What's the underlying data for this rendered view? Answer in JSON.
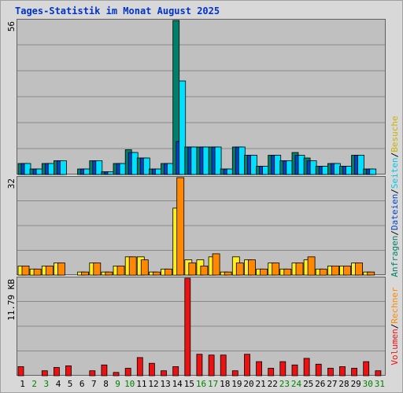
{
  "title": "Tages-Statistik im Monat August 2025",
  "colors": {
    "anfragen": "#00806b",
    "dateien": "#0044cc",
    "seiten": "#00e0ff",
    "besuche": "#ffee22",
    "rechner": "#ff8800",
    "volumen": "#ee1111",
    "weekday_label": "#000000",
    "weekend_label": "#008000"
  },
  "legend_top": {
    "anfragen": "Anfragen",
    "sep1": "/",
    "dateien": "Dateien",
    "sep2": "/",
    "seiten": "Seiten",
    "sep3": "/",
    "besuche": "Besuche"
  },
  "legend_bottom": {
    "rechner": "Rechner",
    "sep": "/",
    "volumen": "Volumen"
  },
  "chart_data": [
    {
      "type": "bar",
      "panel": "top",
      "ymax_label": "56",
      "ylim": [
        0,
        56
      ],
      "categories": [
        "1",
        "2",
        "3",
        "4",
        "5",
        "6",
        "7",
        "8",
        "9",
        "10",
        "11",
        "12",
        "13",
        "14",
        "15",
        "16",
        "17",
        "18",
        "19",
        "20",
        "21",
        "22",
        "23",
        "24",
        "25",
        "26",
        "27",
        "28",
        "29",
        "30",
        "31"
      ],
      "weekend_days": [
        2,
        3,
        9,
        10,
        16,
        17,
        23,
        24,
        30,
        31
      ],
      "series": [
        {
          "name": "Anfragen",
          "values": [
            4,
            2,
            4,
            5,
            0,
            2,
            5,
            1,
            4,
            9,
            6,
            2,
            4,
            56,
            10,
            10,
            10,
            2,
            10,
            7,
            3,
            7,
            5,
            8,
            6,
            3,
            4,
            3,
            7,
            2,
            0
          ]
        },
        {
          "name": "Dateien",
          "values": [
            4,
            2,
            4,
            5,
            0,
            2,
            5,
            1,
            4,
            8,
            6,
            2,
            4,
            12,
            10,
            10,
            10,
            2,
            10,
            7,
            3,
            7,
            5,
            7,
            5,
            3,
            4,
            3,
            7,
            2,
            0
          ]
        },
        {
          "name": "Seiten",
          "values": [
            4,
            2,
            4,
            5,
            0,
            2,
            5,
            1,
            4,
            8,
            6,
            2,
            4,
            34,
            10,
            10,
            10,
            2,
            10,
            7,
            3,
            7,
            5,
            7,
            5,
            3,
            4,
            3,
            7,
            2,
            0
          ]
        }
      ]
    },
    {
      "type": "bar",
      "panel": "middle",
      "ymax_label": "32",
      "ylim": [
        0,
        32
      ],
      "categories": [
        "1",
        "2",
        "3",
        "4",
        "5",
        "6",
        "7",
        "8",
        "9",
        "10",
        "11",
        "12",
        "13",
        "14",
        "15",
        "16",
        "17",
        "18",
        "19",
        "20",
        "21",
        "22",
        "23",
        "24",
        "25",
        "26",
        "27",
        "28",
        "29",
        "30",
        "31"
      ],
      "series": [
        {
          "name": "Besuche",
          "values": [
            3,
            2,
            3,
            4,
            0,
            1,
            4,
            1,
            3,
            6,
            6,
            1,
            2,
            22,
            5,
            5,
            6,
            1,
            6,
            5,
            2,
            4,
            2,
            4,
            5,
            2,
            3,
            3,
            4,
            1,
            0
          ]
        },
        {
          "name": "Rechner",
          "values": [
            3,
            2,
            3,
            4,
            0,
            1,
            4,
            1,
            3,
            6,
            5,
            1,
            2,
            32,
            4,
            3,
            7,
            1,
            4,
            5,
            2,
            4,
            2,
            4,
            6,
            2,
            3,
            3,
            4,
            1,
            0
          ]
        }
      ]
    },
    {
      "type": "bar",
      "panel": "bottom",
      "ymax_label": "11.79 KB",
      "ylim": [
        0,
        11.79
      ],
      "categories": [
        "1",
        "2",
        "3",
        "4",
        "5",
        "6",
        "7",
        "8",
        "9",
        "10",
        "11",
        "12",
        "13",
        "14",
        "15",
        "16",
        "17",
        "18",
        "19",
        "20",
        "21",
        "22",
        "23",
        "24",
        "25",
        "26",
        "27",
        "28",
        "29",
        "30",
        "31"
      ],
      "series": [
        {
          "name": "Volumen",
          "values": [
            1.1,
            0,
            0.6,
            1.0,
            1.2,
            0,
            0.6,
            1.3,
            0.4,
            0.9,
            2.2,
            1.5,
            0.6,
            1.1,
            11.79,
            2.6,
            2.5,
            2.5,
            0.6,
            2.6,
            1.7,
            0.9,
            1.7,
            1.3,
            2.1,
            1.4,
            0.9,
            1.1,
            0.9,
            1.7,
            0.6
          ]
        }
      ]
    }
  ]
}
